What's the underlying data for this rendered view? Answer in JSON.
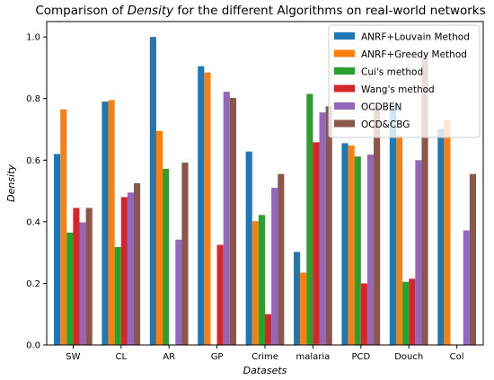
{
  "chart_data": {
    "type": "bar",
    "title_prefix": "Comparison of ",
    "title_emph": "Density",
    "title_suffix": " for the different Algorithms on real-world networks",
    "xlabel": "Datasets",
    "ylabel": "Density",
    "ylim": [
      0,
      1.05
    ],
    "yticks": [
      "0.0",
      "0.2",
      "0.4",
      "0.6",
      "0.8",
      "1.0"
    ],
    "grid": false,
    "legend_position": "top-right",
    "categories": [
      "SW",
      "CL",
      "AR",
      "GP",
      "Crime",
      "malaria",
      "PCD",
      "Douch",
      "Col"
    ],
    "series": [
      {
        "name": "ANRF+Louvain Method",
        "color": "#1f77b4",
        "values": [
          0.62,
          0.79,
          1.0,
          0.905,
          0.628,
          0.302,
          0.655,
          0.78,
          0.702
        ]
      },
      {
        "name": "ANRF+Greedy Method",
        "color": "#ff7f0e",
        "values": [
          0.765,
          0.795,
          0.695,
          0.885,
          0.402,
          0.235,
          0.648,
          0.68,
          0.73
        ]
      },
      {
        "name": "Cui's method",
        "color": "#2ca02c",
        "values": [
          0.365,
          0.318,
          0.572,
          0.0,
          0.422,
          0.815,
          0.612,
          0.205,
          0.0
        ]
      },
      {
        "name": "Wang's method",
        "color": "#d62728",
        "values": [
          0.445,
          0.48,
          0.0,
          0.325,
          0.1,
          0.658,
          0.2,
          0.215,
          0.0
        ]
      },
      {
        "name": "OCDBEN",
        "color": "#9467bd",
        "values": [
          0.398,
          0.495,
          0.342,
          0.822,
          0.51,
          0.755,
          0.618,
          0.6,
          0.372
        ]
      },
      {
        "name": "OCD&CBG",
        "color": "#8c564b",
        "values": [
          0.445,
          0.525,
          0.592,
          0.802,
          0.555,
          0.775,
          0.775,
          0.935,
          0.555
        ]
      }
    ]
  }
}
